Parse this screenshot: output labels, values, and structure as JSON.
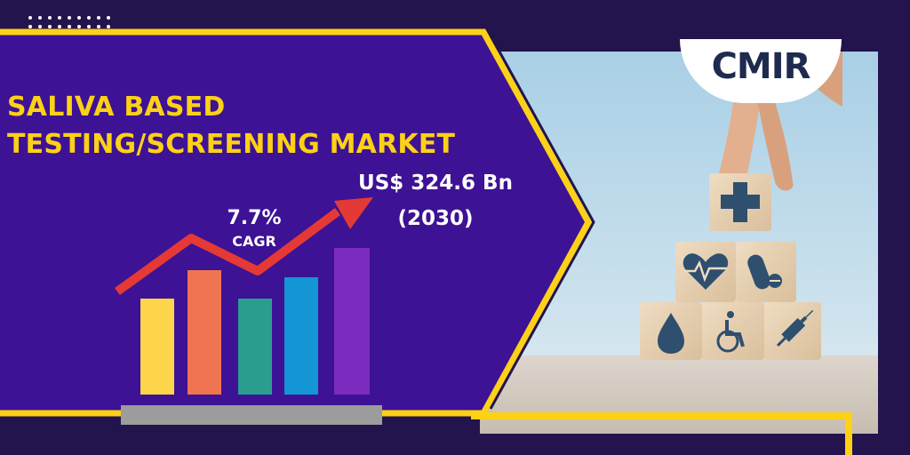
{
  "title": {
    "line1": "SALIVA BASED",
    "line2": "TESTING/SCREENING MARKET"
  },
  "market_value": "US$ 324.6 Bn",
  "year": "(2030)",
  "cagr": {
    "value": "7.7%",
    "label": "CAGR"
  },
  "logo": {
    "text": "CMIR"
  },
  "blocks": {
    "icons": [
      "plus-icon",
      "heart-pulse-icon",
      "pill-icon",
      "drop-icon",
      "wheelchair-icon",
      "syringe-icon"
    ]
  },
  "colors": {
    "background": "#23144d",
    "panel": "#3d1295",
    "accent_yellow": "#fcd116",
    "arrow_red": "#e53935",
    "bars": [
      "#fdd54a",
      "#ef7452",
      "#2a9d8f",
      "#1496d4",
      "#7b2cbf"
    ]
  }
}
